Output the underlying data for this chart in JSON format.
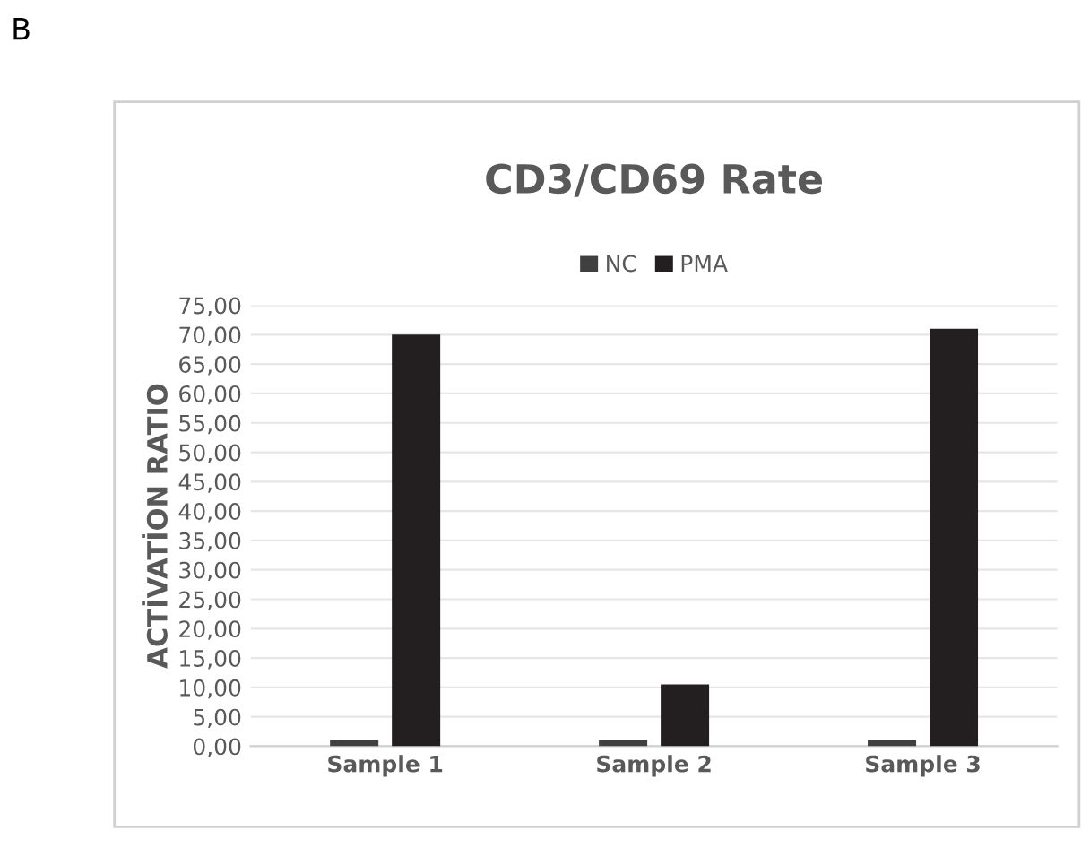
{
  "chart_data": {
    "type": "bar",
    "title": "CD3/CD69 Rate",
    "ylabel": "ACTİVATİON RATIO",
    "annotations": [
      "B"
    ],
    "categories": [
      "Sample 1",
      "Sample 2",
      "Sample 3"
    ],
    "series": [
      {
        "name": "NC",
        "color": "#404040",
        "values": [
          1,
          1,
          1
        ]
      },
      {
        "name": "PMA",
        "color": "#231f20",
        "values": [
          70,
          10.5,
          71
        ]
      }
    ],
    "ylim": [
      0,
      75
    ],
    "yticks": [
      {
        "value": 0,
        "label": "0,00"
      },
      {
        "value": 5,
        "label": "5,00"
      },
      {
        "value": 10,
        "label": "10,00"
      },
      {
        "value": 15,
        "label": "15,00"
      },
      {
        "value": 20,
        "label": "20,00"
      },
      {
        "value": 25,
        "label": "25,00"
      },
      {
        "value": 30,
        "label": "30,00"
      },
      {
        "value": 35,
        "label": "35,00"
      },
      {
        "value": 40,
        "label": "40,00"
      },
      {
        "value": 45,
        "label": "45,00"
      },
      {
        "value": 50,
        "label": "50,00"
      },
      {
        "value": 55,
        "label": "55,00"
      },
      {
        "value": 60,
        "label": "60,00"
      },
      {
        "value": 65,
        "label": "65,00"
      },
      {
        "value": 70,
        "label": "70,00"
      },
      {
        "value": 75,
        "label": "75,00"
      }
    ],
    "grid": "y",
    "legend": "top"
  }
}
